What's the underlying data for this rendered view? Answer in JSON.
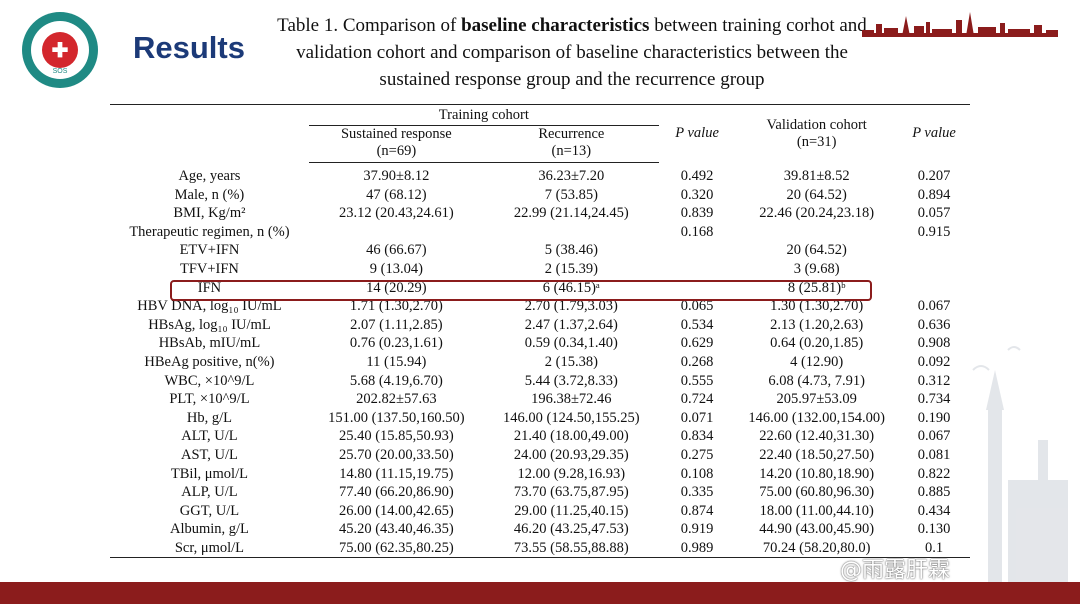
{
  "slide": {
    "section_title": "Results",
    "title_prefix": "Table 1. Comparison of ",
    "title_bold": "baseline characteristics",
    "title_rest": " between training corhot and validation cohort and comparison of baseline characteristics between the sustained response group and the recurrence group",
    "watermark": "@雨露肝霖",
    "colors": {
      "accent": "#8b1c1c",
      "title_blue": "#1c3a78",
      "logo_teal": "#1f8a84",
      "logo_red": "#d3272d"
    }
  },
  "table": {
    "header": {
      "training_cohort": "Training cohort",
      "sustained": "Sustained response",
      "sustained_n": "(n=69)",
      "recurrence": "Recurrence",
      "recurrence_n": "(n=13)",
      "p_value_1": "P value",
      "validation": "Validation cohort",
      "validation_n": "(n=31)",
      "p_value_2": "P value"
    },
    "rows": [
      {
        "label": "Age, years",
        "sustained": "37.90±8.12",
        "recurrence": "36.23±7.20",
        "p1": "0.492",
        "validation": "39.81±8.52",
        "p2": "0.207"
      },
      {
        "label": "Male, n (%)",
        "sustained": "47 (68.12)",
        "recurrence": "7 (53.85)",
        "p1": "0.320",
        "validation": "20 (64.52)",
        "p2": "0.894"
      },
      {
        "label": "BMI, Kg/m²",
        "sustained": "23.12 (20.43,24.61)",
        "recurrence": "22.99 (21.14,24.45)",
        "p1": "0.839",
        "validation": "22.46 (20.24,23.18)",
        "p2": "0.057"
      },
      {
        "label": "Therapeutic regimen, n (%)",
        "sustained": "",
        "recurrence": "",
        "p1": "0.168",
        "validation": "",
        "p2": "0.915"
      },
      {
        "label": "ETV+IFN",
        "sustained": "46 (66.67)",
        "recurrence": "5 (38.46)",
        "p1": "",
        "validation": "20 (64.52)",
        "p2": ""
      },
      {
        "label": "TFV+IFN",
        "sustained": "9 (13.04)",
        "recurrence": "2 (15.39)",
        "p1": "",
        "validation": "3 (9.68)",
        "p2": ""
      },
      {
        "label": "IFN",
        "sustained": "14 (20.29)",
        "recurrence": "6 (46.15)ᵃ",
        "p1": "",
        "validation": "8 (25.81)ᵇ",
        "p2": ""
      },
      {
        "label": "HBV DNA, log₁₀ IU/mL",
        "sustained": "1.71 (1.30,2.70)",
        "recurrence": "2.70 (1.79,3.03)",
        "p1": "0.065",
        "validation": "1.30 (1.30,2.70)",
        "p2": "0.067"
      },
      {
        "label": "HBsAg, log₁₀ IU/mL",
        "sustained": "2.07 (1.11,2.85)",
        "recurrence": "2.47 (1.37,2.64)",
        "p1": "0.534",
        "validation": "2.13 (1.20,2.63)",
        "p2": "0.636"
      },
      {
        "label": "HBsAb, mIU/mL",
        "sustained": "0.76 (0.23,1.61)",
        "recurrence": "0.59 (0.34,1.40)",
        "p1": "0.629",
        "validation": "0.64 (0.20,1.85)",
        "p2": "0.908"
      },
      {
        "label": "HBeAg positive, n(%)",
        "sustained": "11 (15.94)",
        "recurrence": "2 (15.38)",
        "p1": "0.268",
        "validation": "4 (12.90)",
        "p2": "0.092"
      },
      {
        "label": "WBC, ×10^9/L",
        "sustained": "5.68 (4.19,6.70)",
        "recurrence": "5.44 (3.72,8.33)",
        "p1": "0.555",
        "validation": "6.08 (4.73, 7.91)",
        "p2": "0.312"
      },
      {
        "label": "PLT, ×10^9/L",
        "sustained": "202.82±57.63",
        "recurrence": "196.38±72.46",
        "p1": "0.724",
        "validation": "205.97±53.09",
        "p2": "0.734"
      },
      {
        "label": "Hb, g/L",
        "sustained": "151.00 (137.50,160.50)",
        "recurrence": "146.00 (124.50,155.25)",
        "p1": "0.071",
        "validation": "146.00 (132.00,154.00)",
        "p2": "0.190"
      },
      {
        "label": "ALT, U/L",
        "sustained": "25.40 (15.85,50.93)",
        "recurrence": "21.40 (18.00,49.00)",
        "p1": "0.834",
        "validation": "22.60 (12.40,31.30)",
        "p2": "0.067"
      },
      {
        "label": "AST, U/L",
        "sustained": "25.70 (20.00,33.50)",
        "recurrence": "24.00 (20.93,29.35)",
        "p1": "0.275",
        "validation": "22.40 (18.50,27.50)",
        "p2": "0.081"
      },
      {
        "label": "TBil, μmol/L",
        "sustained": "14.80 (11.15,19.75)",
        "recurrence": "12.00 (9.28,16.93)",
        "p1": "0.108",
        "validation": "14.20 (10.80,18.90)",
        "p2": "0.822"
      },
      {
        "label": "ALP, U/L",
        "sustained": "77.40 (66.20,86.90)",
        "recurrence": "73.70 (63.75,87.95)",
        "p1": "0.335",
        "validation": "75.00 (60.80,96.30)",
        "p2": "0.885"
      },
      {
        "label": "GGT, U/L",
        "sustained": "26.00 (14.00,42.65)",
        "recurrence": "29.00 (11.25,40.15)",
        "p1": "0.874",
        "validation": "18.00 (11.00,44.10)",
        "p2": "0.434"
      },
      {
        "label": "Albumin, g/L",
        "sustained": "45.20 (43.40,46.35)",
        "recurrence": "46.20 (43.25,47.53)",
        "p1": "0.919",
        "validation": "44.90 (43.00,45.90)",
        "p2": "0.130"
      },
      {
        "label": "Scr, μmol/L",
        "sustained": "75.00 (62.35,80.25)",
        "recurrence": "73.55 (58.55,88.88)",
        "p1": "0.989",
        "validation": "70.24 (58.20,80.0)",
        "p2": "0.1"
      }
    ]
  }
}
